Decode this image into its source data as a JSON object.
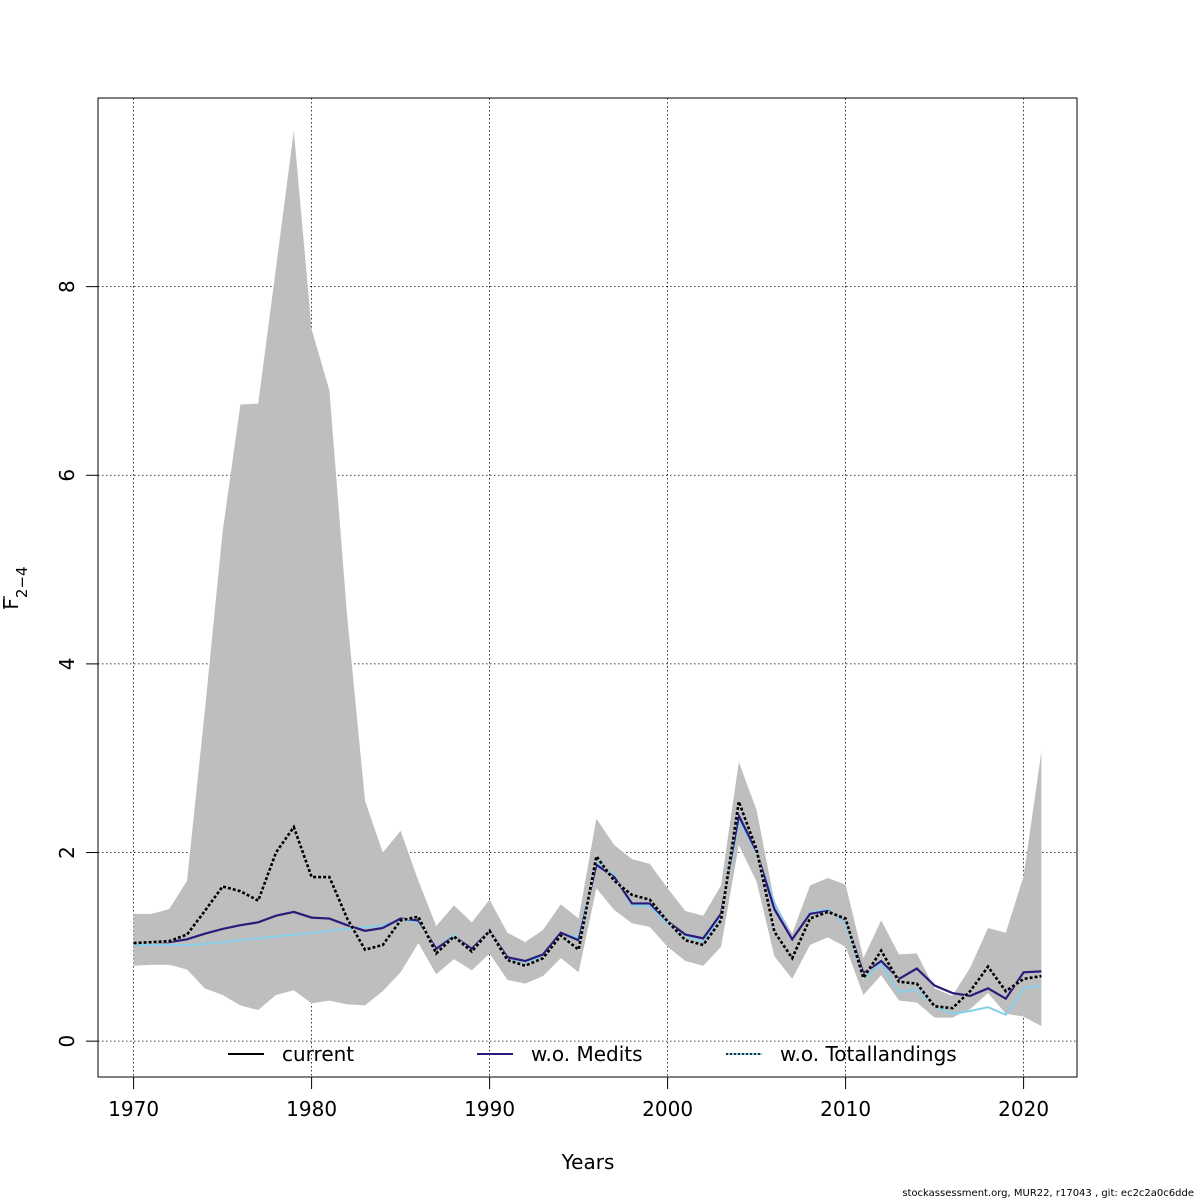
{
  "chart_data": {
    "type": "line",
    "title": "",
    "xlabel": "Years",
    "ylabel_main": "F",
    "ylabel_sub": "2−4",
    "xlim": [
      1968,
      2023
    ],
    "ylim": [
      -0.38,
      10.0
    ],
    "x_ticks": [
      1970,
      1980,
      1990,
      2000,
      2010,
      2020
    ],
    "y_ticks": [
      0,
      2,
      4,
      6,
      8
    ],
    "grid": true,
    "legend_position": "bottom",
    "x": [
      1970,
      1971,
      1972,
      1973,
      1974,
      1975,
      1976,
      1977,
      1978,
      1979,
      1980,
      1981,
      1982,
      1983,
      1984,
      1985,
      1986,
      1987,
      1988,
      1989,
      1990,
      1991,
      1992,
      1993,
      1994,
      1995,
      1996,
      1997,
      1998,
      1999,
      2000,
      2001,
      2002,
      2003,
      2004,
      2005,
      2006,
      2007,
      2008,
      2009,
      2010,
      2011,
      2012,
      2013,
      2014,
      2015,
      2016,
      2017,
      2018,
      2019,
      2020,
      2021
    ],
    "band": {
      "upper": [
        1.35,
        1.35,
        1.4,
        1.7,
        3.5,
        5.4,
        6.75,
        6.76,
        8.2,
        9.65,
        7.55,
        6.9,
        4.5,
        2.55,
        2.0,
        2.23,
        1.7,
        1.22,
        1.44,
        1.26,
        1.5,
        1.15,
        1.05,
        1.18,
        1.45,
        1.3,
        2.36,
        2.08,
        1.93,
        1.88,
        1.62,
        1.38,
        1.33,
        1.65,
        2.96,
        2.45,
        1.48,
        1.14,
        1.65,
        1.73,
        1.66,
        0.88,
        1.28,
        0.92,
        0.93,
        0.56,
        0.48,
        0.78,
        1.2,
        1.15,
        1.75,
        3.07
      ],
      "lower": [
        0.8,
        0.81,
        0.81,
        0.76,
        0.56,
        0.49,
        0.38,
        0.33,
        0.49,
        0.54,
        0.4,
        0.43,
        0.39,
        0.38,
        0.53,
        0.73,
        1.04,
        0.71,
        0.87,
        0.75,
        0.93,
        0.65,
        0.61,
        0.69,
        0.88,
        0.73,
        1.62,
        1.39,
        1.25,
        1.21,
        1.0,
        0.85,
        0.8,
        1.0,
        2.08,
        1.69,
        0.9,
        0.66,
        1.02,
        1.1,
        1.0,
        0.49,
        0.7,
        0.43,
        0.41,
        0.25,
        0.25,
        0.34,
        0.51,
        0.29,
        0.26,
        0.16
      ]
    },
    "series": [
      {
        "name": "current",
        "color": "#000000",
        "values": [
          1.04,
          1.05,
          1.06,
          1.13,
          1.38,
          1.64,
          1.59,
          1.49,
          2.0,
          2.27,
          1.74,
          1.74,
          1.3,
          0.97,
          1.02,
          1.28,
          1.32,
          0.93,
          1.11,
          0.95,
          1.17,
          0.86,
          0.8,
          0.88,
          1.12,
          0.97,
          1.96,
          1.7,
          1.55,
          1.5,
          1.27,
          1.07,
          1.02,
          1.28,
          2.54,
          2.03,
          1.16,
          0.88,
          1.3,
          1.37,
          1.3,
          0.67,
          0.96,
          0.63,
          0.61,
          0.37,
          0.35,
          0.53,
          0.79,
          0.53,
          0.66,
          0.69
        ]
      },
      {
        "name": "w.o. Medits",
        "color": "#2b1a7a",
        "values": [
          1.04,
          1.05,
          1.05,
          1.08,
          1.14,
          1.19,
          1.23,
          1.26,
          1.33,
          1.37,
          1.31,
          1.3,
          1.23,
          1.17,
          1.2,
          1.3,
          1.28,
          0.98,
          1.11,
          0.98,
          1.17,
          0.89,
          0.85,
          0.92,
          1.15,
          1.07,
          1.87,
          1.74,
          1.46,
          1.46,
          1.27,
          1.13,
          1.09,
          1.35,
          2.39,
          2.01,
          1.4,
          1.08,
          1.35,
          1.38,
          1.29,
          0.72,
          0.85,
          0.66,
          0.77,
          0.59,
          0.51,
          0.48,
          0.56,
          0.45,
          0.73,
          0.74
        ]
      },
      {
        "name": "w.o. Totallandings",
        "color": "#87ceeb",
        "values": [
          1.02,
          1.02,
          1.02,
          1.02,
          1.03,
          1.05,
          1.07,
          1.09,
          1.11,
          1.13,
          1.15,
          1.17,
          1.19,
          1.21,
          1.23,
          1.28,
          1.27,
          0.98,
          1.13,
          0.95,
          1.18,
          0.88,
          0.84,
          0.89,
          1.14,
          1.1,
          1.9,
          1.76,
          1.44,
          1.43,
          1.24,
          1.12,
          1.05,
          1.33,
          2.34,
          1.99,
          1.47,
          1.07,
          1.36,
          1.4,
          1.24,
          0.66,
          0.82,
          0.52,
          0.55,
          0.37,
          0.29,
          0.32,
          0.36,
          0.28,
          0.56,
          0.59
        ]
      }
    ],
    "band_color": "#bebebe"
  },
  "footer": {
    "text": "stockassessment.org, MUR22, r17043 , git: ec2c2a0c6dde"
  }
}
